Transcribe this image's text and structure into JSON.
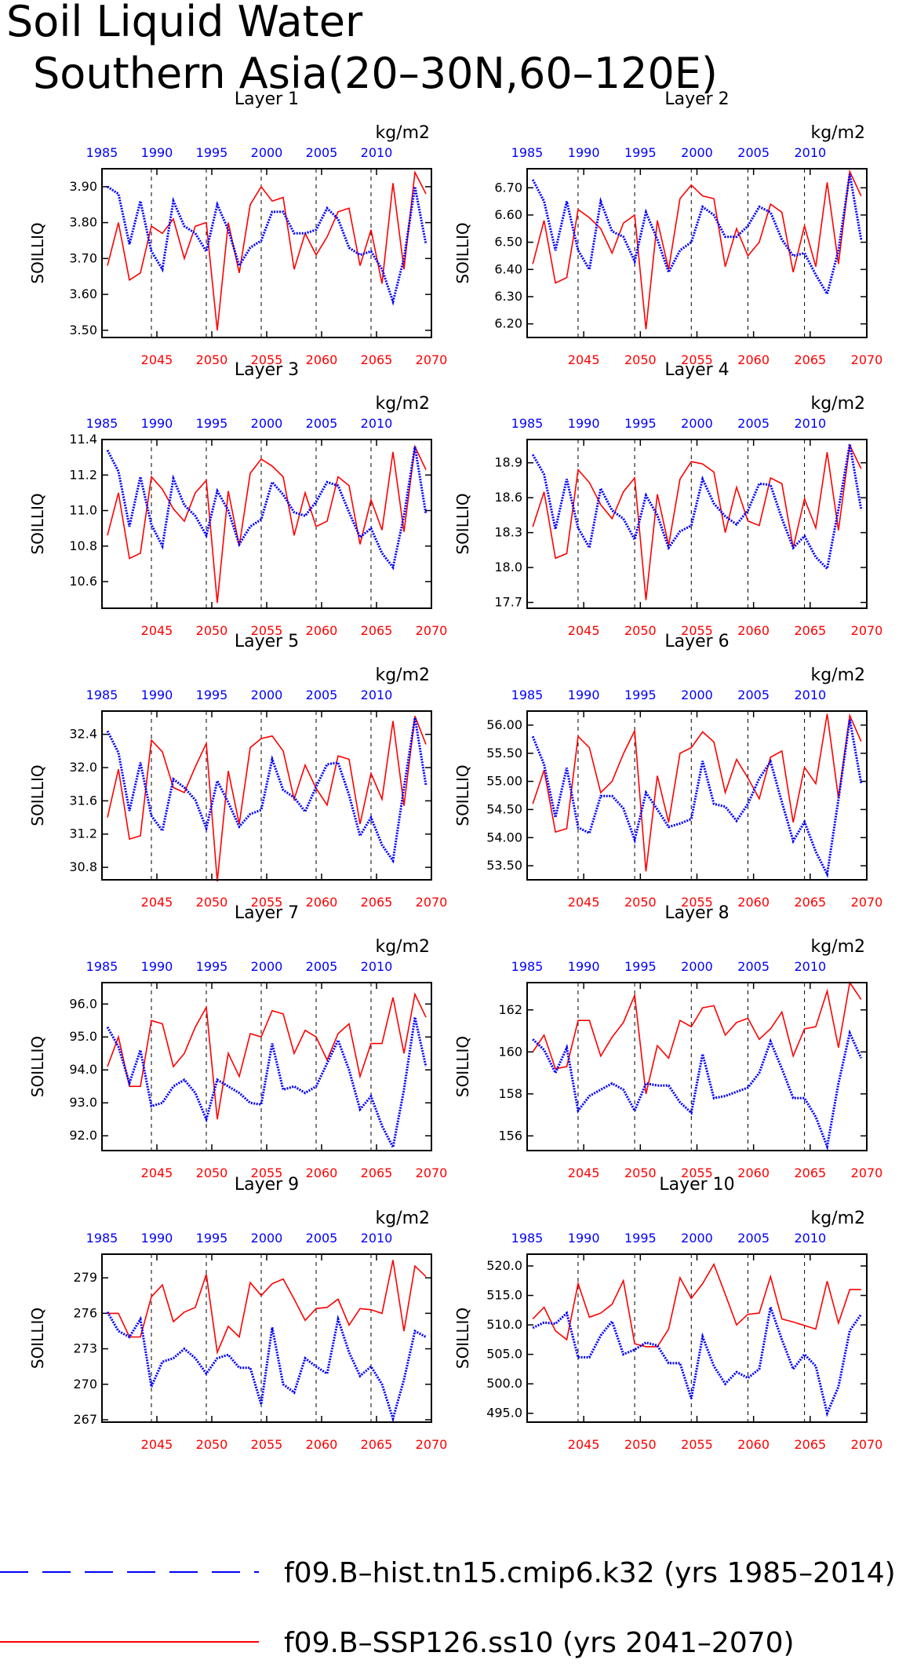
{
  "title_lines": [
    "Soil Liquid Water",
    "Southern Asia(20–30N,60–120E)"
  ],
  "colors": {
    "hist": "#0000ff",
    "future": "#ff0000",
    "frame": "#000000"
  },
  "legend": [
    {
      "label": "f09.B–hist.tn15.cmip6.k32 (yrs 1985–2014)",
      "style": "dashed",
      "color": "#0000ff"
    },
    {
      "label": "f09.B–SSP126.ss10 (yrs 2041–2070)",
      "style": "solid",
      "color": "#ff0000"
    }
  ],
  "chart_data": [
    {
      "type": "line",
      "title": "Layer 1",
      "units": "kg/m2",
      "ylabel": "SOILLIQ",
      "ylim": [
        3.48,
        3.95
      ],
      "yticks": [
        "3.50",
        "3.60",
        "3.70",
        "3.80",
        "3.90"
      ],
      "x_top_ticks": [
        "1985",
        "1990",
        "1995",
        "2000",
        "2005",
        "2010"
      ],
      "x_bottom_ticks": [
        "2045",
        "2050",
        "2055",
        "2060",
        "2065",
        "2070"
      ],
      "series": [
        {
          "values": [
            3.9,
            3.88,
            3.74,
            3.86,
            3.72,
            3.67,
            3.86,
            3.79,
            3.77,
            3.72,
            3.85,
            3.78,
            3.68,
            3.73,
            3.75,
            3.83,
            3.83,
            3.77,
            3.77,
            3.78,
            3.84,
            3.81,
            3.73,
            3.71,
            3.72,
            3.67,
            3.58,
            3.7,
            3.9,
            3.74
          ]
        },
        {
          "values": [
            3.68,
            3.8,
            3.64,
            3.66,
            3.79,
            3.77,
            3.81,
            3.7,
            3.79,
            3.8,
            3.5,
            3.8,
            3.66,
            3.85,
            3.9,
            3.86,
            3.87,
            3.67,
            3.77,
            3.71,
            3.76,
            3.83,
            3.84,
            3.68,
            3.78,
            3.63,
            3.91,
            3.67,
            3.94,
            3.88
          ]
        }
      ]
    },
    {
      "type": "line",
      "title": "Layer 2",
      "units": "kg/m2",
      "ylabel": "SOILLIQ",
      "ylim": [
        6.15,
        6.77
      ],
      "yticks": [
        "6.20",
        "6.30",
        "6.40",
        "6.50",
        "6.60",
        "6.70"
      ],
      "x_top_ticks": [
        "1985",
        "1990",
        "1995",
        "2000",
        "2005",
        "2010"
      ],
      "x_bottom_ticks": [
        "2045",
        "2050",
        "2055",
        "2060",
        "2065",
        "2070"
      ],
      "series": [
        {
          "values": [
            6.73,
            6.65,
            6.47,
            6.65,
            6.47,
            6.4,
            6.65,
            6.54,
            6.52,
            6.43,
            6.61,
            6.51,
            6.39,
            6.47,
            6.5,
            6.63,
            6.6,
            6.52,
            6.52,
            6.56,
            6.63,
            6.61,
            6.51,
            6.45,
            6.46,
            6.38,
            6.31,
            6.47,
            6.75,
            6.51
          ]
        },
        {
          "values": [
            6.42,
            6.58,
            6.35,
            6.37,
            6.62,
            6.59,
            6.55,
            6.46,
            6.57,
            6.6,
            6.18,
            6.58,
            6.4,
            6.66,
            6.71,
            6.67,
            6.66,
            6.41,
            6.55,
            6.45,
            6.5,
            6.64,
            6.61,
            6.39,
            6.56,
            6.41,
            6.72,
            6.42,
            6.76,
            6.67
          ]
        }
      ]
    },
    {
      "type": "line",
      "title": "Layer 3",
      "units": "kg/m2",
      "ylabel": "SOILLIQ",
      "ylim": [
        10.45,
        11.4
      ],
      "yticks": [
        "10.6",
        "10.8",
        "11.0",
        "11.2",
        "11.4"
      ],
      "x_top_ticks": [
        "1985",
        "1990",
        "1995",
        "2000",
        "2005",
        "2010"
      ],
      "x_bottom_ticks": [
        "2045",
        "2050",
        "2055",
        "2060",
        "2065",
        "2070"
      ],
      "series": [
        {
          "values": [
            11.34,
            11.22,
            10.91,
            11.19,
            10.92,
            10.8,
            11.18,
            11.03,
            10.97,
            10.86,
            11.11,
            11.0,
            10.81,
            10.91,
            10.95,
            11.16,
            11.09,
            10.99,
            10.97,
            11.05,
            11.16,
            11.14,
            10.99,
            10.85,
            10.9,
            10.76,
            10.68,
            10.97,
            11.36,
            10.98
          ]
        },
        {
          "values": [
            10.86,
            11.1,
            10.73,
            10.76,
            11.19,
            11.12,
            11.01,
            10.94,
            11.1,
            11.17,
            10.48,
            11.11,
            10.8,
            11.21,
            11.29,
            11.25,
            11.19,
            10.86,
            11.1,
            10.91,
            10.94,
            11.19,
            11.14,
            10.81,
            11.06,
            10.89,
            11.33,
            10.88,
            11.36,
            11.23
          ]
        }
      ]
    },
    {
      "type": "line",
      "title": "Layer 4",
      "units": "kg/m2",
      "ylabel": "SOILLIQ",
      "ylim": [
        17.65,
        19.1
      ],
      "yticks": [
        "17.7",
        "18.0",
        "18.3",
        "18.6",
        "18.9"
      ],
      "x_top_ticks": [
        "1985",
        "1990",
        "1995",
        "2000",
        "2005",
        "2010"
      ],
      "x_bottom_ticks": [
        "2045",
        "2050",
        "2055",
        "2060",
        "2065",
        "2070"
      ],
      "series": [
        {
          "values": [
            18.97,
            18.8,
            18.33,
            18.76,
            18.34,
            18.17,
            18.68,
            18.49,
            18.42,
            18.24,
            18.62,
            18.45,
            18.17,
            18.31,
            18.36,
            18.76,
            18.55,
            18.44,
            18.37,
            18.49,
            18.72,
            18.71,
            18.42,
            18.17,
            18.27,
            18.09,
            17.99,
            18.5,
            19.06,
            18.5
          ]
        },
        {
          "values": [
            18.35,
            18.65,
            18.08,
            18.12,
            18.84,
            18.73,
            18.54,
            18.42,
            18.65,
            18.77,
            17.72,
            18.63,
            18.19,
            18.76,
            18.91,
            18.89,
            18.82,
            18.3,
            18.69,
            18.4,
            18.36,
            18.77,
            18.72,
            18.17,
            18.59,
            18.34,
            18.99,
            18.32,
            19.05,
            18.85
          ]
        }
      ]
    },
    {
      "type": "line",
      "title": "Layer 5",
      "units": "kg/m2",
      "ylabel": "SOILLIQ",
      "ylim": [
        30.65,
        32.68
      ],
      "yticks": [
        "30.8",
        "31.2",
        "31.6",
        "32.0",
        "32.4"
      ],
      "x_top_ticks": [
        "1985",
        "1990",
        "1995",
        "2000",
        "2005",
        "2010"
      ],
      "x_bottom_ticks": [
        "2045",
        "2050",
        "2055",
        "2060",
        "2065",
        "2070"
      ],
      "series": [
        {
          "values": [
            32.44,
            32.18,
            31.48,
            32.06,
            31.42,
            31.24,
            31.86,
            31.76,
            31.61,
            31.27,
            31.84,
            31.58,
            31.29,
            31.44,
            31.49,
            32.1,
            31.73,
            31.64,
            31.47,
            31.77,
            32.04,
            32.06,
            31.67,
            31.18,
            31.4,
            31.07,
            30.88,
            31.76,
            32.6,
            31.79
          ]
        },
        {
          "values": [
            31.4,
            31.98,
            31.14,
            31.18,
            32.33,
            32.19,
            31.76,
            31.7,
            32.01,
            32.29,
            30.63,
            31.96,
            31.32,
            32.24,
            32.35,
            32.38,
            32.2,
            31.62,
            32.03,
            31.75,
            31.55,
            32.14,
            32.1,
            31.32,
            31.93,
            31.62,
            32.56,
            31.54,
            32.62,
            32.28
          ]
        }
      ]
    },
    {
      "type": "line",
      "title": "Layer 6",
      "units": "kg/m2",
      "ylabel": "SOILLIQ",
      "ylim": [
        53.25,
        56.25
      ],
      "yticks": [
        "53.50",
        "54.00",
        "54.50",
        "55.00",
        "55.50",
        "56.00"
      ],
      "x_top_ticks": [
        "1985",
        "1990",
        "1995",
        "2000",
        "2005",
        "2010"
      ],
      "x_bottom_ticks": [
        "2045",
        "2050",
        "2055",
        "2060",
        "2065",
        "2070"
      ],
      "series": [
        {
          "values": [
            55.8,
            55.3,
            54.36,
            55.24,
            54.18,
            54.08,
            54.74,
            54.74,
            54.52,
            53.96,
            54.8,
            54.5,
            54.19,
            54.25,
            54.33,
            55.36,
            54.6,
            54.55,
            54.3,
            54.6,
            55.05,
            55.35,
            54.63,
            53.94,
            54.28,
            53.75,
            53.35,
            54.68,
            56.1,
            54.97
          ]
        },
        {
          "values": [
            54.6,
            55.2,
            54.1,
            54.16,
            55.8,
            55.6,
            54.8,
            55.0,
            55.49,
            55.9,
            53.4,
            55.1,
            54.27,
            55.5,
            55.6,
            55.88,
            55.7,
            54.8,
            55.39,
            55.06,
            54.69,
            55.43,
            55.54,
            54.27,
            55.25,
            54.96,
            56.2,
            54.7,
            56.17,
            55.71
          ]
        }
      ]
    },
    {
      "type": "line",
      "title": "Layer 7",
      "units": "kg/m2",
      "ylabel": "SOILLIQ",
      "ylim": [
        91.55,
        96.65
      ],
      "yticks": [
        "92.0",
        "93.0",
        "94.0",
        "95.0",
        "96.0"
      ],
      "x_top_ticks": [
        "1985",
        "1990",
        "1995",
        "2000",
        "2005",
        "2010"
      ],
      "x_bottom_ticks": [
        "2045",
        "2050",
        "2055",
        "2060",
        "2065",
        "2070"
      ],
      "series": [
        {
          "values": [
            95.3,
            94.7,
            93.6,
            94.6,
            92.9,
            93.0,
            93.5,
            93.7,
            93.3,
            92.5,
            93.7,
            93.5,
            93.3,
            93.0,
            92.95,
            94.8,
            93.4,
            93.5,
            93.3,
            93.5,
            94.2,
            94.9,
            94.0,
            92.8,
            93.2,
            92.3,
            91.65,
            93.4,
            95.6,
            94.1
          ]
        },
        {
          "values": [
            94.1,
            95.0,
            93.5,
            93.5,
            95.5,
            95.4,
            94.1,
            94.5,
            95.3,
            95.9,
            92.5,
            94.5,
            93.8,
            95.1,
            95.0,
            95.8,
            95.7,
            94.5,
            95.2,
            95.0,
            94.3,
            95.1,
            95.4,
            93.8,
            94.8,
            94.8,
            96.2,
            94.5,
            96.3,
            95.6
          ]
        }
      ]
    },
    {
      "type": "line",
      "title": "Layer 8",
      "units": "kg/m2",
      "ylabel": "SOILLIQ",
      "ylim": [
        155.3,
        163.3
      ],
      "yticks": [
        "156",
        "158",
        "160",
        "162"
      ],
      "x_top_ticks": [
        "1985",
        "1990",
        "1995",
        "2000",
        "2005",
        "2010"
      ],
      "x_bottom_ticks": [
        "2045",
        "2050",
        "2055",
        "2060",
        "2065",
        "2070"
      ],
      "series": [
        {
          "values": [
            160.6,
            160.1,
            159.0,
            160.2,
            157.2,
            157.9,
            158.2,
            158.5,
            158.2,
            157.2,
            158.5,
            158.4,
            158.4,
            157.6,
            157.1,
            159.9,
            157.8,
            157.9,
            158.1,
            158.3,
            159.0,
            160.5,
            159.2,
            157.8,
            157.8,
            156.9,
            155.5,
            158.5,
            160.9,
            159.7
          ]
        },
        {
          "values": [
            160.0,
            160.8,
            159.2,
            159.3,
            161.5,
            161.5,
            159.8,
            160.7,
            161.4,
            162.7,
            158.0,
            160.3,
            159.7,
            161.5,
            161.2,
            162.1,
            162.2,
            160.8,
            161.4,
            161.6,
            160.6,
            161.1,
            161.9,
            159.8,
            161.1,
            161.2,
            162.9,
            160.2,
            163.3,
            162.5
          ]
        }
      ]
    },
    {
      "type": "line",
      "title": "Layer 9",
      "units": "kg/m2",
      "ylabel": "SOILLIQ",
      "ylim": [
        266.8,
        281.0
      ],
      "yticks": [
        "267",
        "270",
        "273",
        "276",
        "279"
      ],
      "x_top_ticks": [
        "1985",
        "1990",
        "1995",
        "2000",
        "2005",
        "2010"
      ],
      "x_bottom_ticks": [
        "2045",
        "2050",
        "2055",
        "2060",
        "2065",
        "2070"
      ],
      "series": [
        {
          "values": [
            276.1,
            274.5,
            274.0,
            275.5,
            269.8,
            271.9,
            272.2,
            273.0,
            272.2,
            270.9,
            272.2,
            272.5,
            271.4,
            271.4,
            268.3,
            274.8,
            270.0,
            269.3,
            272.2,
            271.5,
            270.9,
            275.5,
            272.7,
            270.7,
            271.5,
            270.0,
            267.1,
            270.4,
            274.5,
            274.0
          ]
        },
        {
          "values": [
            276.0,
            276.0,
            274.0,
            274.0,
            277.4,
            278.4,
            275.3,
            276.1,
            276.5,
            279.3,
            272.7,
            274.9,
            274.0,
            278.6,
            277.5,
            278.5,
            278.9,
            277.2,
            275.4,
            276.4,
            276.5,
            277.2,
            275.0,
            276.4,
            276.3,
            276.0,
            280.5,
            274.5,
            280.0,
            279.1
          ]
        }
      ]
    },
    {
      "type": "line",
      "title": "Layer 10",
      "units": "kg/m2",
      "ylabel": "SOILLIQ",
      "ylim": [
        493.5,
        522.0
      ],
      "yticks": [
        "495.0",
        "500.0",
        "505.0",
        "510.0",
        "515.0",
        "520.0"
      ],
      "x_top_ticks": [
        "1985",
        "1990",
        "1995",
        "2000",
        "2005",
        "2010"
      ],
      "x_bottom_ticks": [
        "2045",
        "2050",
        "2055",
        "2060",
        "2065",
        "2070"
      ],
      "series": [
        {
          "values": [
            509.5,
            510.4,
            510.2,
            512.0,
            504.5,
            504.5,
            508.2,
            510.6,
            505.0,
            505.8,
            507.0,
            506.5,
            503.5,
            503.5,
            497.5,
            508.0,
            503.0,
            500.0,
            502.0,
            501.0,
            502.5,
            513.0,
            507.5,
            502.5,
            505.0,
            503.0,
            495.0,
            499.5,
            509.0,
            511.8
          ]
        },
        {
          "values": [
            511.0,
            513.0,
            509.0,
            507.5,
            517.0,
            511.3,
            512.0,
            513.5,
            517.5,
            506.8,
            506.3,
            506.3,
            509.3,
            518.0,
            514.5,
            517.0,
            520.3,
            515.2,
            510.0,
            511.8,
            512.0,
            518.2,
            511.0,
            510.5,
            509.9,
            509.3,
            517.4,
            510.3,
            516.0,
            516.0
          ]
        }
      ]
    }
  ]
}
